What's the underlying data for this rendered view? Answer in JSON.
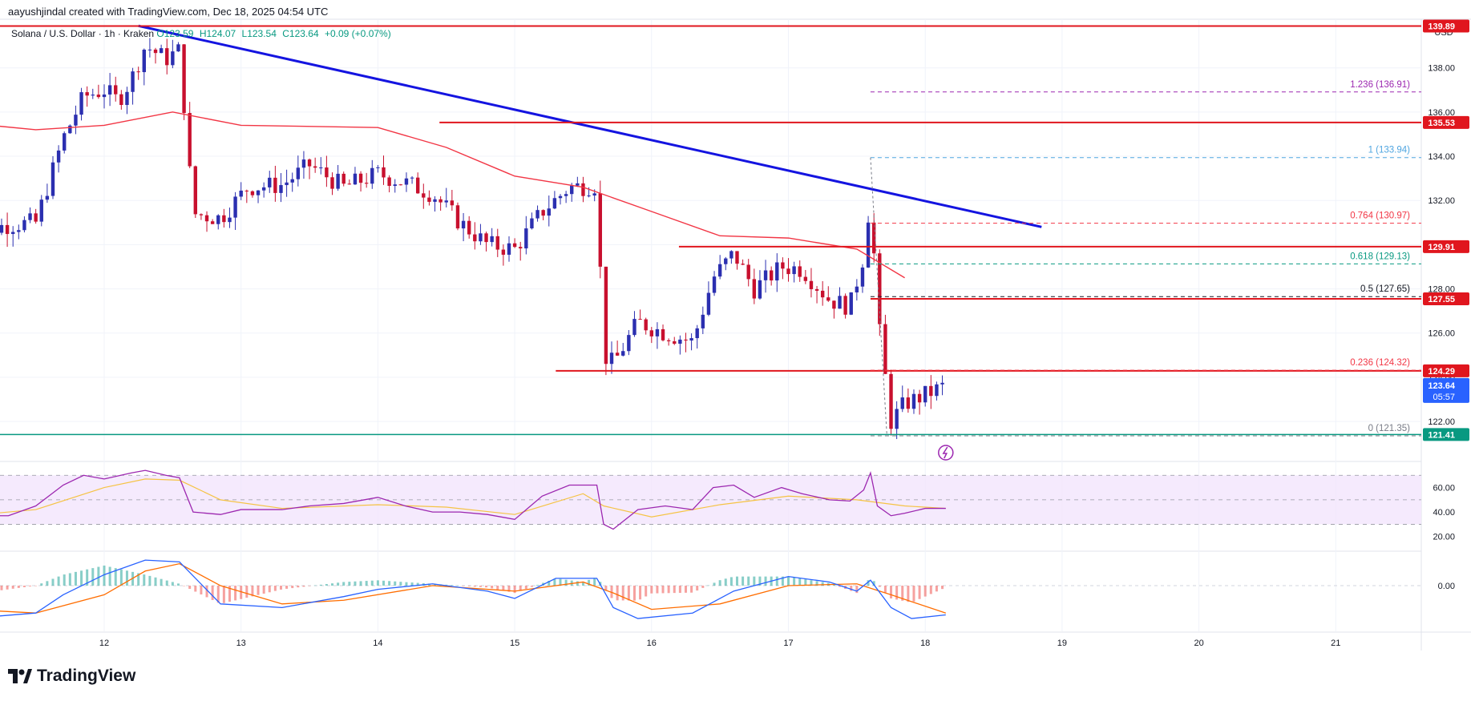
{
  "header": {
    "credit": "aayushjindal created with TradingView.com, Dec 18, 2025 04:54 UTC"
  },
  "legend": {
    "symbol": "Solana / U.S. Dollar · 1h · Kraken",
    "open": "O123.59",
    "high": "H124.07",
    "low": "L123.54",
    "close": "C123.64",
    "change": "+0.09 (+0.07%)"
  },
  "logo": {
    "text": "TradingView"
  },
  "chart_data": {
    "type": "candlestick",
    "currency": "USD",
    "x_ticks": [
      "12",
      "13",
      "14",
      "15",
      "16",
      "17",
      "18",
      "19",
      "20",
      "21"
    ],
    "y_ticks": [
      "122.00",
      "124.00",
      "126.00",
      "128.00",
      "130.00",
      "132.00",
      "134.00",
      "136.00",
      "138.00"
    ],
    "price_range": [
      120.3,
      140.2
    ],
    "series_anchors": [
      [
        11.0,
        130.5
      ],
      [
        11.3,
        130.9
      ],
      [
        11.5,
        131.0
      ],
      [
        11.7,
        134.8
      ],
      [
        11.85,
        136.7
      ],
      [
        12.0,
        137.0
      ],
      [
        12.1,
        136.5
      ],
      [
        12.2,
        137.5
      ],
      [
        12.3,
        139.0
      ],
      [
        12.45,
        138.4
      ],
      [
        12.55,
        138.8
      ],
      [
        12.65,
        131.4
      ],
      [
        12.85,
        131.2
      ],
      [
        13.05,
        132.6
      ],
      [
        13.3,
        132.7
      ],
      [
        13.5,
        133.6
      ],
      [
        13.75,
        132.6
      ],
      [
        14.0,
        133.2
      ],
      [
        14.2,
        132.8
      ],
      [
        14.4,
        132.3
      ],
      [
        14.6,
        131.0
      ],
      [
        14.8,
        130.0
      ],
      [
        15.0,
        129.8
      ],
      [
        15.2,
        131.5
      ],
      [
        15.4,
        132.6
      ],
      [
        15.6,
        132.7
      ],
      [
        15.65,
        125.0
      ],
      [
        15.72,
        124.6
      ],
      [
        15.9,
        126.5
      ],
      [
        16.1,
        126.0
      ],
      [
        16.3,
        125.6
      ],
      [
        16.45,
        128.5
      ],
      [
        16.6,
        129.6
      ],
      [
        16.75,
        128.0
      ],
      [
        16.95,
        129.0
      ],
      [
        17.1,
        128.9
      ],
      [
        17.3,
        127.5
      ],
      [
        17.45,
        127.2
      ],
      [
        17.55,
        129.5
      ],
      [
        17.6,
        132.3
      ],
      [
        17.65,
        126.8
      ],
      [
        17.75,
        122.0
      ],
      [
        17.85,
        122.8
      ],
      [
        18.0,
        123.2
      ],
      [
        18.15,
        123.64
      ]
    ],
    "moving_average": [
      [
        11.0,
        135.5
      ],
      [
        11.5,
        135.2
      ],
      [
        12.0,
        135.4
      ],
      [
        12.5,
        136.0
      ],
      [
        13.0,
        135.4
      ],
      [
        14.0,
        135.3
      ],
      [
        14.5,
        134.4
      ],
      [
        15.0,
        133.1
      ],
      [
        15.5,
        132.6
      ],
      [
        16.0,
        131.5
      ],
      [
        16.5,
        130.4
      ],
      [
        17.0,
        130.3
      ],
      [
        17.5,
        129.8
      ],
      [
        17.85,
        128.5
      ]
    ],
    "trend_line": {
      "from": [
        12.25,
        139.9
      ],
      "to": [
        18.85,
        130.8
      ]
    },
    "horizontal_levels": [
      {
        "price": "139.89",
        "start": 11.0
      },
      {
        "price": "135.53",
        "start": 14.45
      },
      {
        "price": "129.91",
        "start": 16.2
      },
      {
        "price": "127.55",
        "start": 17.6
      },
      {
        "price": "124.29",
        "start": 15.3
      }
    ],
    "support_level": {
      "price": "121.41"
    },
    "last_price": {
      "price": "123.64",
      "countdown": "05:57"
    },
    "fibonacci": [
      {
        "ratio": "1.236",
        "price": "136.91",
        "label": "1.236 (136.91)",
        "color": "#9c27b0"
      },
      {
        "ratio": "1",
        "price": "133.94",
        "label": "1 (133.94)",
        "color": "#4fa5e0"
      },
      {
        "ratio": "0.764",
        "price": "130.97",
        "label": "0.764 (130.97)",
        "color": "#f23645"
      },
      {
        "ratio": "0.618",
        "price": "129.13",
        "label": "0.618 (129.13)",
        "color": "#089981"
      },
      {
        "ratio": "0.5",
        "price": "127.65",
        "label": "0.5 (127.65)",
        "color": "#131722"
      },
      {
        "ratio": "0.236",
        "price": "124.32",
        "label": "0.236 (124.32)",
        "color": "#f23645"
      },
      {
        "ratio": "0",
        "price": "121.35",
        "label": "0 (121.35)",
        "color": "#787b86"
      }
    ],
    "rsi": {
      "y_ticks": [
        "60.00",
        "40.00",
        "20.00"
      ],
      "bands": [
        70,
        50,
        30
      ],
      "values": [
        [
          11.0,
          37
        ],
        [
          11.3,
          37
        ],
        [
          11.5,
          45
        ],
        [
          11.7,
          62
        ],
        [
          11.85,
          70
        ],
        [
          12.0,
          67
        ],
        [
          12.2,
          72
        ],
        [
          12.3,
          74
        ],
        [
          12.45,
          70
        ],
        [
          12.55,
          68
        ],
        [
          12.65,
          40
        ],
        [
          12.85,
          38
        ],
        [
          13.0,
          42
        ],
        [
          13.3,
          42
        ],
        [
          13.5,
          45
        ],
        [
          13.75,
          47
        ],
        [
          14.0,
          52
        ],
        [
          14.2,
          45
        ],
        [
          14.4,
          40
        ],
        [
          14.6,
          40
        ],
        [
          14.8,
          38
        ],
        [
          15.0,
          34
        ],
        [
          15.2,
          53
        ],
        [
          15.4,
          62
        ],
        [
          15.6,
          62
        ],
        [
          15.65,
          30
        ],
        [
          15.72,
          26
        ],
        [
          15.9,
          42
        ],
        [
          16.1,
          45
        ],
        [
          16.3,
          42
        ],
        [
          16.45,
          60
        ],
        [
          16.6,
          62
        ],
        [
          16.75,
          52
        ],
        [
          16.95,
          60
        ],
        [
          17.1,
          55
        ],
        [
          17.3,
          50
        ],
        [
          17.45,
          49
        ],
        [
          17.55,
          58
        ],
        [
          17.6,
          72
        ],
        [
          17.65,
          45
        ],
        [
          17.75,
          37
        ],
        [
          17.85,
          39
        ],
        [
          18.0,
          43
        ],
        [
          18.15,
          43
        ]
      ],
      "signal": [
        [
          11.0,
          37
        ],
        [
          11.5,
          42
        ],
        [
          12.0,
          60
        ],
        [
          12.3,
          67
        ],
        [
          12.55,
          66
        ],
        [
          12.85,
          50
        ],
        [
          13.3,
          43
        ],
        [
          14.0,
          46
        ],
        [
          14.5,
          44
        ],
        [
          15.0,
          38
        ],
        [
          15.5,
          55
        ],
        [
          15.65,
          45
        ],
        [
          16.0,
          36
        ],
        [
          16.5,
          46
        ],
        [
          17.0,
          53
        ],
        [
          17.5,
          50
        ],
        [
          17.85,
          45
        ],
        [
          18.15,
          43
        ]
      ]
    },
    "macd": {
      "y_ticks": [
        "0.00"
      ],
      "range": [
        -2.5,
        1.8
      ],
      "macd_line": [
        [
          11.0,
          -1.8
        ],
        [
          11.5,
          -1.5
        ],
        [
          11.7,
          -0.5
        ],
        [
          12.0,
          0.6
        ],
        [
          12.3,
          1.4
        ],
        [
          12.55,
          1.3
        ],
        [
          12.85,
          -1.0
        ],
        [
          13.3,
          -1.2
        ],
        [
          13.75,
          -0.6
        ],
        [
          14.0,
          -0.2
        ],
        [
          14.4,
          0.1
        ],
        [
          14.8,
          -0.3
        ],
        [
          15.0,
          -0.7
        ],
        [
          15.3,
          0.4
        ],
        [
          15.6,
          0.4
        ],
        [
          15.72,
          -1.2
        ],
        [
          15.9,
          -1.8
        ],
        [
          16.3,
          -1.5
        ],
        [
          16.6,
          -0.3
        ],
        [
          17.0,
          0.5
        ],
        [
          17.3,
          0.2
        ],
        [
          17.5,
          -0.3
        ],
        [
          17.6,
          0.3
        ],
        [
          17.75,
          -1.2
        ],
        [
          17.9,
          -1.8
        ],
        [
          18.15,
          -1.6
        ]
      ],
      "signal_line": [
        [
          11.0,
          -1.3
        ],
        [
          11.5,
          -1.5
        ],
        [
          12.0,
          -0.5
        ],
        [
          12.3,
          0.8
        ],
        [
          12.55,
          1.2
        ],
        [
          12.85,
          0.0
        ],
        [
          13.3,
          -1.0
        ],
        [
          13.75,
          -0.8
        ],
        [
          14.4,
          0.0
        ],
        [
          15.0,
          -0.3
        ],
        [
          15.5,
          0.2
        ],
        [
          15.72,
          -0.4
        ],
        [
          16.0,
          -1.3
        ],
        [
          16.5,
          -1.0
        ],
        [
          17.0,
          0.0
        ],
        [
          17.5,
          0.1
        ],
        [
          17.75,
          -0.5
        ],
        [
          18.15,
          -1.5
        ]
      ]
    }
  }
}
